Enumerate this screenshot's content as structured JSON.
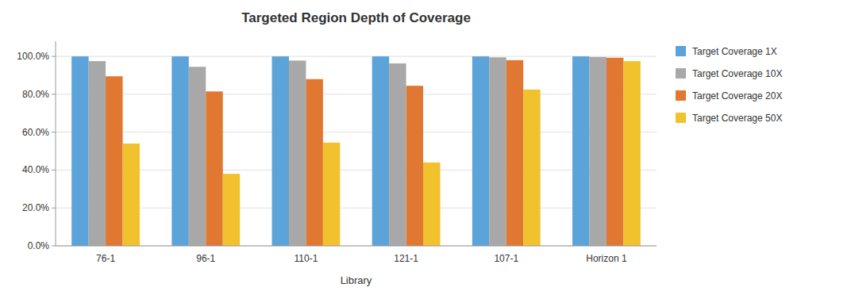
{
  "chart_data": {
    "type": "bar",
    "title": "Targeted Region Depth of Coverage",
    "xlabel": "Library",
    "categories": [
      "76-1",
      "96-1",
      "110-1",
      "121-1",
      "107-1",
      "Horizon 1"
    ],
    "series": [
      {
        "name": "Target Coverage 1X",
        "color": "#5BA3D9",
        "values": [
          1.0,
          1.0,
          1.0,
          1.0,
          1.0,
          1.0
        ]
      },
      {
        "name": "Target Coverage 10X",
        "color": "#A8A8A8",
        "values": [
          0.975,
          0.945,
          0.978,
          0.963,
          0.995,
          0.997
        ]
      },
      {
        "name": "Target Coverage 20X",
        "color": "#E07832",
        "values": [
          0.895,
          0.815,
          0.88,
          0.845,
          0.98,
          0.993
        ]
      },
      {
        "name": "Target Coverage 50X",
        "color": "#F2C12E",
        "values": [
          0.54,
          0.38,
          0.545,
          0.44,
          0.825,
          0.975
        ]
      }
    ],
    "ylim": [
      0.0,
      1.08
    ],
    "yticks": [
      {
        "value": 0.0,
        "label": "0.0%"
      },
      {
        "value": 0.2,
        "label": "20.0%"
      },
      {
        "value": 0.4,
        "label": "40.0%"
      },
      {
        "value": 0.6,
        "label": "60.0%"
      },
      {
        "value": 0.8,
        "label": "80.0%"
      },
      {
        "value": 1.0,
        "label": "100.0%"
      }
    ],
    "grid": true,
    "legend": "right"
  }
}
